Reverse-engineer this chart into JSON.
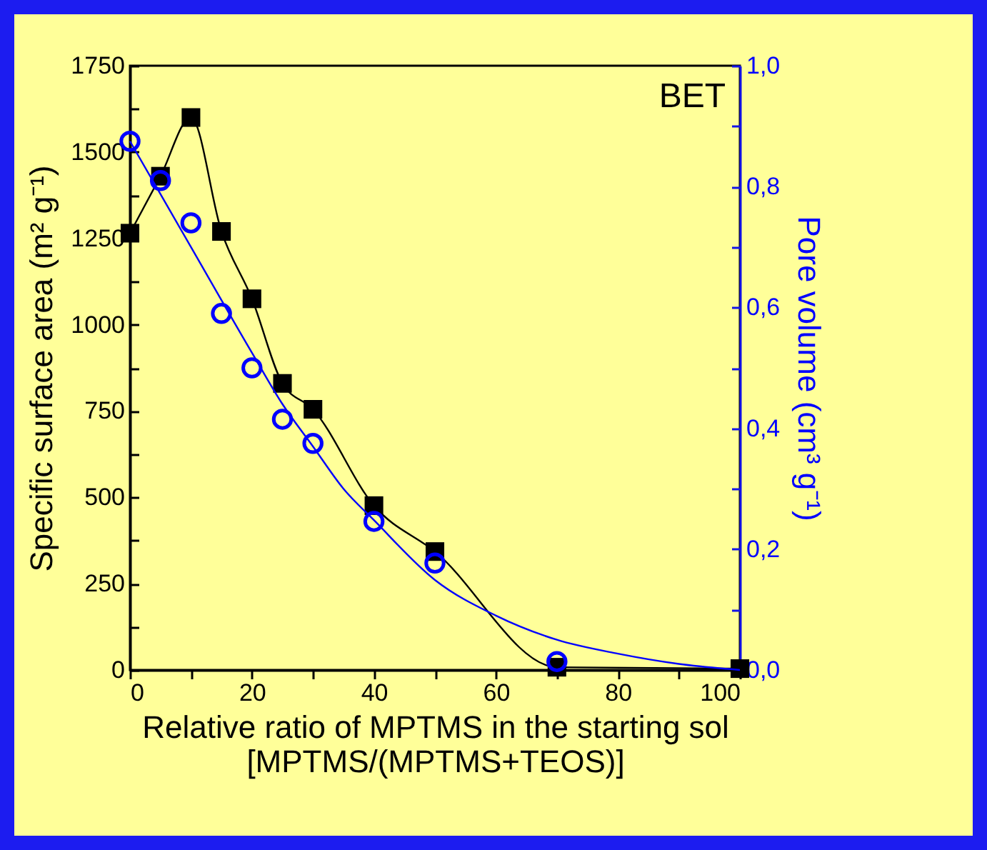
{
  "chart_data": {
    "type": "line",
    "xlabel": "Relative ratio of MPTMS in the starting sol\n[MPTMS/(MPTMS+TEOS)]",
    "ylabel": "Specific surface area (m² g⁻¹)",
    "y2label": "Pore volume (cm³ g⁻¹)",
    "annotations": [
      "BET"
    ],
    "xlim": [
      0,
      100
    ],
    "xticks": [
      0,
      {
        "value": 10,
        "label": null
      },
      20,
      {
        "value": 30,
        "label": null
      },
      40,
      {
        "value": 50,
        "label": null
      },
      60,
      {
        "value": 70,
        "label": null
      },
      80,
      {
        "value": 90,
        "label": null
      },
      100
    ],
    "ylim": [
      0,
      1750
    ],
    "yticks": [
      0,
      {
        "value": 125,
        "label": null
      },
      250,
      {
        "value": 375,
        "label": null
      },
      500,
      {
        "value": 625,
        "label": null
      },
      750,
      {
        "value": 875,
        "label": null
      },
      1000,
      {
        "value": 1125,
        "label": null
      },
      1250,
      {
        "value": 1375,
        "label": null
      },
      1500,
      {
        "value": 1625,
        "label": null
      },
      1750
    ],
    "y2lim": [
      0,
      1.0
    ],
    "y2ticks": [
      {
        "value": 0,
        "label": "0,0"
      },
      {
        "value": 0.1,
        "label": null
      },
      {
        "value": 0.2,
        "label": "0,2"
      },
      {
        "value": 0.3,
        "label": null
      },
      {
        "value": 0.4,
        "label": "0,4"
      },
      {
        "value": 0.5,
        "label": null
      },
      {
        "value": 0.6,
        "label": "0,6"
      },
      {
        "value": 0.7,
        "label": null
      },
      {
        "value": 0.8,
        "label": "0,8"
      },
      {
        "value": 0.9,
        "label": null
      },
      {
        "value": 1.0,
        "label": "1,0"
      }
    ],
    "grid": false,
    "series": [
      {
        "type": "line",
        "marker": "square",
        "color": "#000000",
        "x": [
          0,
          5,
          10,
          15,
          20,
          25,
          30,
          40,
          50,
          70,
          100
        ],
        "values": [
          1265,
          1430,
          1600,
          1270,
          1075,
          830,
          755,
          476,
          343,
          8,
          4
        ]
      },
      {
        "type": "scatter",
        "marker": "circle",
        "axis": "y2",
        "color": "#0000ff",
        "x": [
          0,
          5,
          10,
          15,
          20,
          25,
          30,
          40,
          50,
          70
        ],
        "values": [
          0.875,
          0.81,
          0.74,
          0.59,
          0.5,
          0.415,
          0.375,
          0.246,
          0.177,
          0.014
        ]
      },
      {
        "type": "line",
        "marker": "none",
        "axis": "y2",
        "color": "#0000ff",
        "x": [
          0,
          10,
          20,
          25,
          30,
          35,
          40,
          50,
          60,
          70,
          80,
          90,
          100
        ],
        "values": [
          0.875,
          0.7,
          0.525,
          0.44,
          0.37,
          0.3,
          0.248,
          0.149,
          0.09,
          0.05,
          0.027,
          0.01,
          0.0
        ]
      }
    ]
  }
}
